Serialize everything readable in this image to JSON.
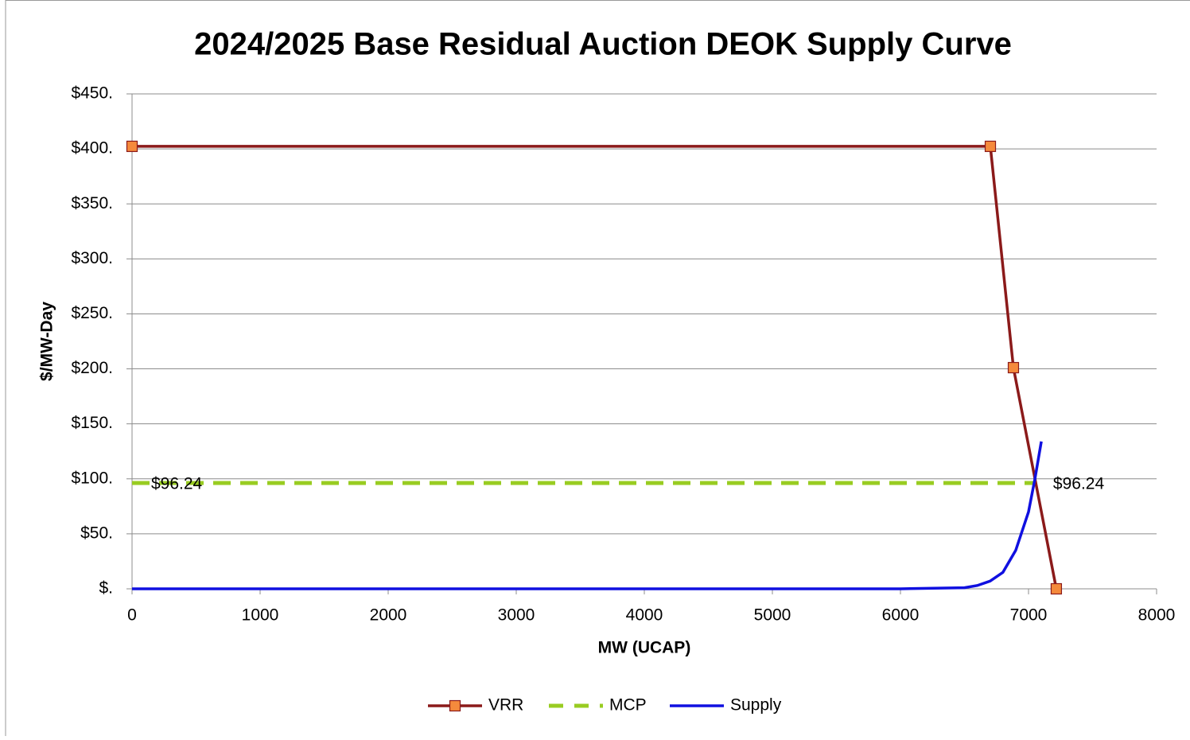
{
  "chart_data": {
    "type": "line",
    "title": "2024/2025 Base Residual Auction DEOK Supply Curve",
    "x_label": "MW (UCAP)",
    "y_label": "$/MW-Day",
    "xlim": [
      0,
      8000
    ],
    "xticks": [
      0,
      1000,
      2000,
      3000,
      4000,
      5000,
      6000,
      7000,
      8000
    ],
    "ylim": [
      0,
      450
    ],
    "yticks": [
      {
        "value": 0,
        "label": "$."
      },
      {
        "value": 50,
        "label": "$50."
      },
      {
        "value": 100,
        "label": "$100."
      },
      {
        "value": 150,
        "label": "$150."
      },
      {
        "value": 200,
        "label": "$200."
      },
      {
        "value": 250,
        "label": "$250."
      },
      {
        "value": 300,
        "label": "$300."
      },
      {
        "value": 350,
        "label": "$350."
      },
      {
        "value": 400,
        "label": "$400."
      },
      {
        "value": 450,
        "label": "$450."
      }
    ],
    "grid": true,
    "legend": "bottom",
    "series": [
      {
        "name": "VRR",
        "color": "#8b1a1a",
        "marker_color": "#f58a3c",
        "x": [
          0,
          6702,
          6882,
          7217
        ],
        "values": [
          402.3,
          402.3,
          201.1,
          0
        ]
      },
      {
        "name": "MCP",
        "color": "#99cc22",
        "dashed": true,
        "x": [
          0,
          7043
        ],
        "values": [
          96.24,
          96.24
        ],
        "value_labels": [
          "$96.24",
          "$96.24"
        ]
      },
      {
        "name": "Supply",
        "color": "#1010e0",
        "x": [
          0,
          6000,
          6500,
          6600,
          6700,
          6800,
          6900,
          7000,
          7050,
          7100
        ],
        "values": [
          0,
          0,
          1,
          3,
          7,
          15,
          35,
          70,
          100,
          134
        ]
      }
    ]
  }
}
